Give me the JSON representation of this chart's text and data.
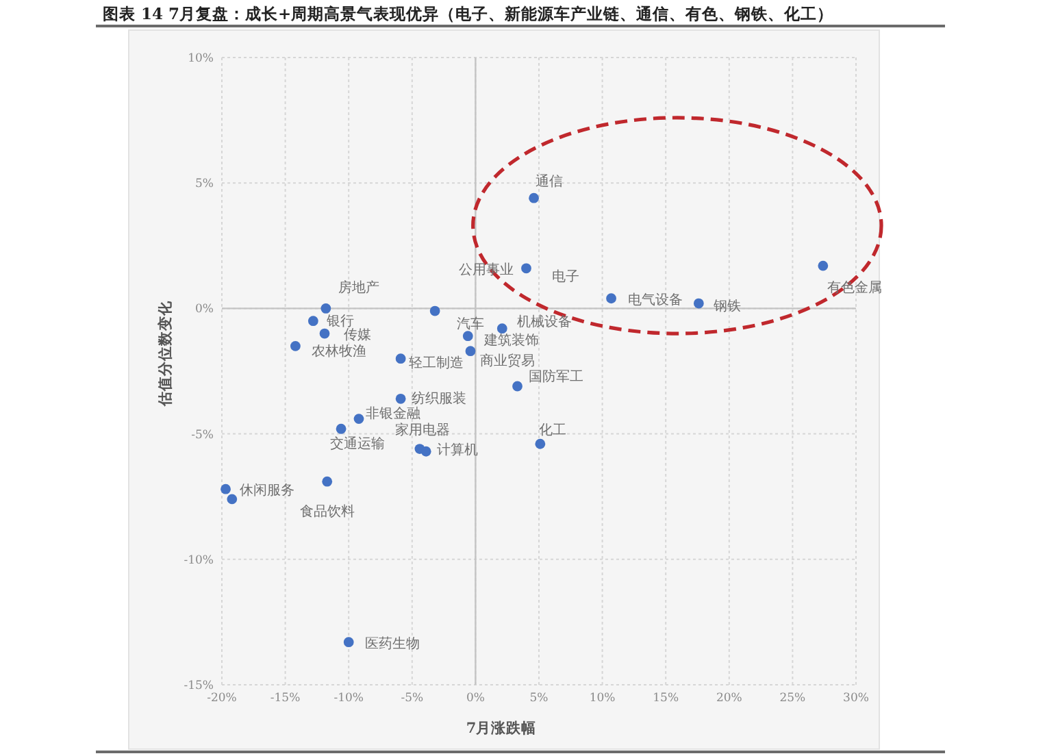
{
  "chart_data": {
    "type": "scatter",
    "title": "图表 14 7月复盘：成长+周期高景气表现优异（电子、新能源车产业链、通信、有色、钢铁、化工）",
    "xlabel": "7月涨跌幅",
    "ylabel": "估值分位数变化",
    "x": [
      4.6,
      4.0,
      10.7,
      17.6,
      27.4,
      -11.8,
      -12.8,
      -11.9,
      -14.2,
      -3.2,
      -0.6,
      2.1,
      -0.4,
      -5.9,
      3.3,
      -5.9,
      -9.2,
      -4.4,
      -3.9,
      -10.6,
      5.1,
      -19.7,
      -19.2,
      -11.7,
      -10.0
    ],
    "values": [
      4.4,
      1.6,
      0.4,
      0.2,
      1.7,
      0.0,
      -0.5,
      -1.0,
      -1.5,
      -0.1,
      -1.1,
      -0.8,
      -1.7,
      -2.0,
      -3.1,
      -3.6,
      -4.4,
      -5.6,
      -5.7,
      -4.8,
      -5.4,
      -7.2,
      -7.6,
      -6.9,
      -13.3
    ],
    "color": "#4472c4",
    "marker": "circle",
    "grid": true,
    "xlim": [
      -20,
      30
    ],
    "ylim": [
      -15,
      10
    ],
    "xticks": [
      {
        "value": -20,
        "label": "-20%"
      },
      {
        "value": -15,
        "label": "-15%"
      },
      {
        "value": -10,
        "label": "-10%"
      },
      {
        "value": -5,
        "label": "-5%"
      },
      {
        "value": 0,
        "label": "0%"
      },
      {
        "value": 5,
        "label": "5%"
      },
      {
        "value": 10,
        "label": "10%"
      },
      {
        "value": 15,
        "label": "15%"
      },
      {
        "value": 20,
        "label": "20%"
      },
      {
        "value": 25,
        "label": "25%"
      },
      {
        "value": 30,
        "label": "30%"
      }
    ],
    "yticks": [
      {
        "value": -15,
        "label": "-15%"
      },
      {
        "value": -10,
        "label": "-10%"
      },
      {
        "value": -5,
        "label": "-5%"
      },
      {
        "value": 0,
        "label": "0%"
      },
      {
        "value": 5,
        "label": "5%"
      },
      {
        "value": 10,
        "label": "10%"
      }
    ],
    "annotations": [
      {
        "text": "通信",
        "x": 4.6,
        "y": 4.4
      },
      {
        "text": "公用事业",
        "x": 4.0,
        "y": 1.6
      },
      {
        "text": "电子",
        "x": 4.0,
        "y": 1.6
      },
      {
        "text": "电气设备",
        "x": 10.7,
        "y": 0.4
      },
      {
        "text": "钢铁",
        "x": 17.6,
        "y": 0.2
      },
      {
        "text": "有色金属",
        "x": 27.4,
        "y": 1.7
      },
      {
        "text": "房地产",
        "x": -11.8,
        "y": 0.0
      },
      {
        "text": "银行",
        "x": -12.8,
        "y": -0.5
      },
      {
        "text": "传媒",
        "x": -11.9,
        "y": -1.0
      },
      {
        "text": "农林牧渔",
        "x": -14.2,
        "y": -1.5
      },
      {
        "text": "汽车",
        "x": -0.6,
        "y": -1.1
      },
      {
        "text": "建筑装饰",
        "x": -0.6,
        "y": -1.1
      },
      {
        "text": "机械设备",
        "x": 2.1,
        "y": -0.8
      },
      {
        "text": "商业贸易",
        "x": -0.4,
        "y": -1.7
      },
      {
        "text": "轻工制造",
        "x": -5.9,
        "y": -2.0
      },
      {
        "text": "国防军工",
        "x": 3.3,
        "y": -3.1
      },
      {
        "text": "纺织服装",
        "x": -5.9,
        "y": -3.6
      },
      {
        "text": "非银金融",
        "x": -9.2,
        "y": -4.4
      },
      {
        "text": "家用电器",
        "x": -4.4,
        "y": -5.6
      },
      {
        "text": "计算机",
        "x": -3.9,
        "y": -5.7
      },
      {
        "text": "交通运输",
        "x": -10.6,
        "y": -4.8
      },
      {
        "text": "化工",
        "x": 5.1,
        "y": -5.4
      },
      {
        "text": "休闲服务",
        "x": -19.7,
        "y": -7.2
      },
      {
        "text": "食品饮料",
        "x": -11.7,
        "y": -6.9
      },
      {
        "text": "医药生物",
        "x": -10.0,
        "y": -13.3
      }
    ]
  }
}
